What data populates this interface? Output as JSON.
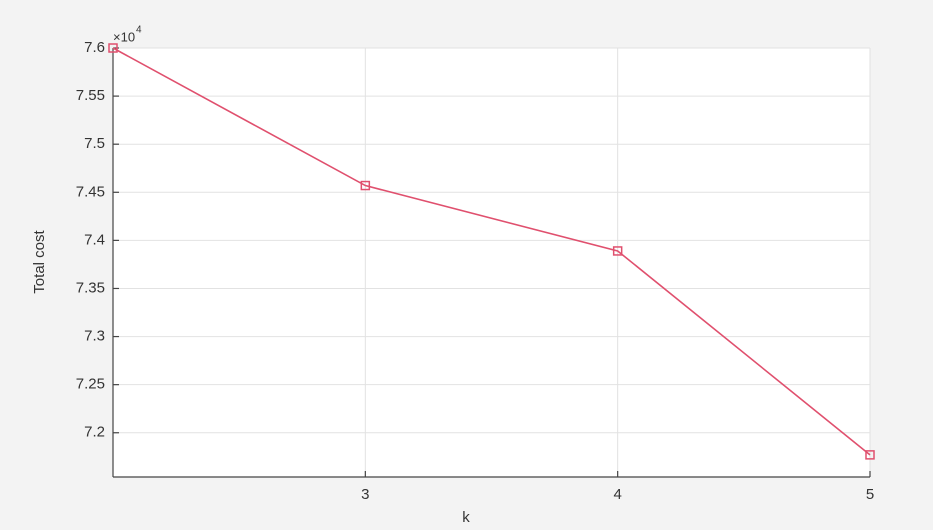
{
  "chart_data": {
    "type": "line",
    "x_label": "k",
    "y_label": "Total cost",
    "y_multiplier_base": "×10",
    "y_multiplier_exponent": "4",
    "x": [
      2,
      3,
      4,
      5
    ],
    "series": [
      {
        "name": "Total cost",
        "color": "#e0506e",
        "values": [
          7.6,
          7.457,
          7.389,
          7.177
        ]
      }
    ],
    "xlim": [
      2,
      5
    ],
    "xticks": [
      3,
      4,
      5
    ],
    "ylim": [
      7.154,
      7.6
    ],
    "yticks": [
      7.2,
      7.25,
      7.3,
      7.35,
      7.4,
      7.45,
      7.5,
      7.55,
      7.6
    ],
    "grid": true
  }
}
